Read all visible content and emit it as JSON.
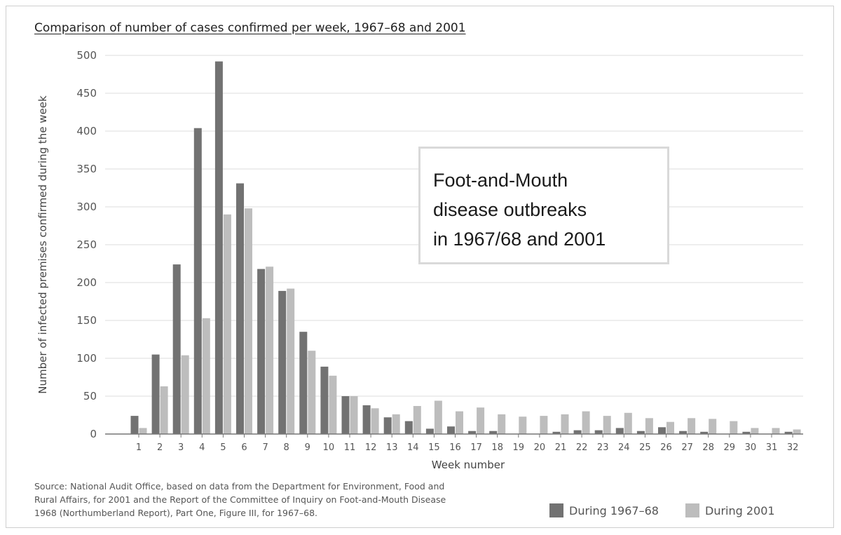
{
  "chart_data": {
    "type": "bar",
    "title": "Comparison of number of cases confirmed per week, 1967–68 and 2001",
    "xlabel": "Week number",
    "ylabel": "Number of infected premises confirmed during the week",
    "ylim": [
      0,
      500
    ],
    "yticks": [
      "0",
      "50",
      "100",
      "150",
      "200",
      "250",
      "300",
      "350",
      "400",
      "450",
      "500"
    ],
    "ytick_values": [
      0,
      50,
      100,
      150,
      200,
      250,
      300,
      350,
      400,
      450,
      500
    ],
    "grid": true,
    "legend_position": "bottom-right",
    "categories": [
      "1",
      "2",
      "3",
      "4",
      "5",
      "6",
      "7",
      "8",
      "9",
      "10",
      "11",
      "12",
      "13",
      "14",
      "15",
      "16",
      "17",
      "18",
      "19",
      "20",
      "21",
      "22",
      "23",
      "24",
      "25",
      "26",
      "27",
      "28",
      "29",
      "30",
      "31",
      "32"
    ],
    "series": [
      {
        "name": "During 1967–68",
        "color": "#727272",
        "values": [
          24,
          105,
          224,
          404,
          492,
          331,
          218,
          189,
          135,
          89,
          50,
          38,
          22,
          17,
          7,
          10,
          4,
          4,
          0,
          0,
          3,
          5,
          5,
          8,
          4,
          9,
          4,
          3,
          0,
          3,
          0,
          3
        ]
      },
      {
        "name": "During 2001",
        "color": "#bdbdbd",
        "values": [
          8,
          63,
          104,
          153,
          290,
          298,
          221,
          192,
          110,
          77,
          50,
          34,
          26,
          37,
          44,
          30,
          35,
          26,
          23,
          24,
          26,
          30,
          24,
          28,
          21,
          16,
          21,
          20,
          17,
          8,
          8,
          6
        ]
      }
    ]
  },
  "callout": {
    "lines": [
      "Foot-and-Mouth",
      "disease outbreaks",
      "in 1967/68 and 2001"
    ]
  },
  "source": {
    "lines": [
      "Source: National Audit Office, based on data from the Department for Environment, Food and",
      "Rural Affairs, for 2001 and the Report of the Committee of Inquiry on Foot-and-Mouth Disease",
      "1968 (Northumberland Report), Part One, Figure III, for 1967–68."
    ]
  }
}
